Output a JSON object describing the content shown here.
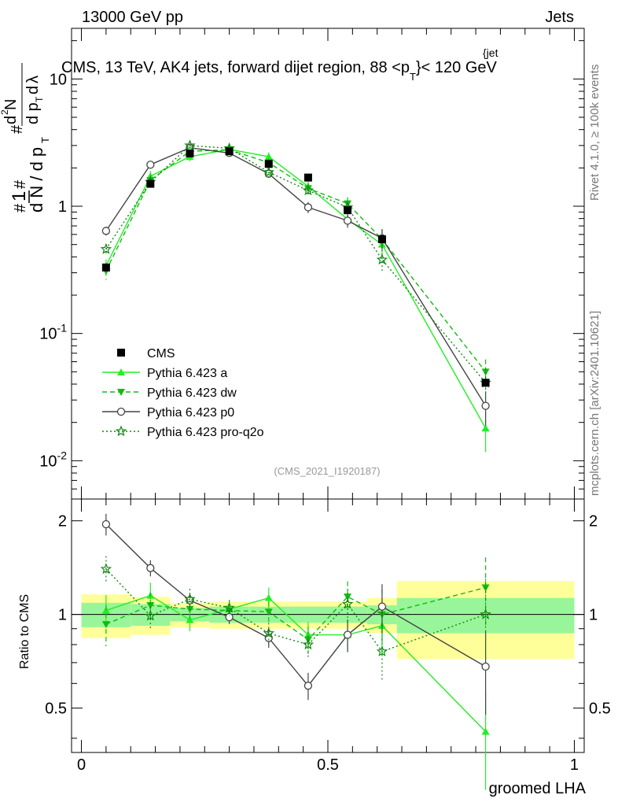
{
  "header": {
    "left": "13000 GeV pp",
    "right": "Jets"
  },
  "side_labels": {
    "rivet": "Rivet 4.1.0, ≥ 100k events",
    "mcplots": "mcplots.cern.ch [arXiv:2401.10621]"
  },
  "chart_data": {
    "type": "line",
    "title": "CMS, 13 TeV, AK4 jets, forward dijet region, 88 <p_T^{jet}< 120 GeV",
    "title_main": "CMS, 13 TeV, AK4 jets, forward dijet region, 88 <p",
    "title_sup": "{jet",
    "title_sub": "T",
    "title_tail": "}< 120 GeV",
    "analysis_id": "(CMS_2021_I1920187)",
    "xlabel": "groomed LHA",
    "ylabel": "1/dN/dp_T · d²N/(dp_T dλ)",
    "ratio_ylabel": "Ratio to CMS",
    "xlim": [
      -0.02,
      1.02
    ],
    "ylim": [
      0.005,
      25
    ],
    "yscale": "log",
    "ratio_ylim": [
      0.36,
      2.35
    ],
    "ratio_yscale": "log",
    "x_ticks": [
      "0",
      "0.5",
      "1"
    ],
    "y_ticks": [
      "10^{-2}",
      "10^{-1}",
      "1",
      "10"
    ],
    "ratio_ticks": [
      "0.5",
      "1",
      "2"
    ],
    "bins": [
      {
        "lo": 0.0,
        "hi": 0.1
      },
      {
        "lo": 0.1,
        "hi": 0.18
      },
      {
        "lo": 0.18,
        "hi": 0.26
      },
      {
        "lo": 0.26,
        "hi": 0.34
      },
      {
        "lo": 0.34,
        "hi": 0.42
      },
      {
        "lo": 0.42,
        "hi": 0.5
      },
      {
        "lo": 0.5,
        "hi": 0.58
      },
      {
        "lo": 0.58,
        "hi": 0.64
      },
      {
        "lo": 0.64,
        "hi": 1.0
      }
    ],
    "x": [
      0.05,
      0.14,
      0.22,
      0.3,
      0.38,
      0.46,
      0.54,
      0.61,
      0.82
    ],
    "data": {
      "name": "CMS",
      "values": [
        0.33,
        1.5,
        2.6,
        2.7,
        2.15,
        1.68,
        0.93,
        0.55,
        0.041
      ],
      "band_outer": [
        0.16,
        0.14,
        0.09,
        0.1,
        0.1,
        0.1,
        0.1,
        0.13,
        0.28
      ],
      "band_inner": [
        0.09,
        0.08,
        0.05,
        0.06,
        0.06,
        0.06,
        0.06,
        0.07,
        0.13
      ]
    },
    "series": [
      {
        "name": "Pythia 6.423 a",
        "color": "#22ee22",
        "dash": "",
        "marker": "triangle-up",
        "values": [
          0.34,
          1.72,
          2.45,
          2.8,
          2.45,
          1.43,
          0.79,
          0.5,
          0.018
        ],
        "ratio": [
          1.03,
          1.15,
          0.96,
          1.04,
          1.13,
          0.86,
          0.86,
          0.92,
          0.42
        ],
        "err": [
          0.12,
          0.1,
          0.08,
          0.06,
          0.08,
          0.1,
          0.12,
          0.2,
          0.35
        ]
      },
      {
        "name": "Pythia 6.423 dw",
        "color": "#11bb11",
        "dash": "6,4",
        "marker": "triangle-down",
        "values": [
          0.31,
          1.6,
          2.7,
          2.78,
          2.2,
          1.38,
          1.05,
          0.55,
          0.05
        ],
        "ratio": [
          0.93,
          1.07,
          1.04,
          1.03,
          1.02,
          0.83,
          1.14,
          1.0,
          1.22
        ],
        "err": [
          0.15,
          0.1,
          0.08,
          0.06,
          0.08,
          0.1,
          0.12,
          0.2,
          0.25
        ]
      },
      {
        "name": "Pythia 6.423 p0",
        "color": "#444444",
        "dash": "",
        "marker": "circle-open",
        "values": [
          0.64,
          2.12,
          2.88,
          2.62,
          1.8,
          0.98,
          0.77,
          0.56,
          0.027
        ],
        "ratio": [
          1.95,
          1.41,
          1.11,
          0.98,
          0.84,
          0.59,
          0.86,
          1.06,
          0.68
        ],
        "err": [
          0.08,
          0.06,
          0.05,
          0.05,
          0.07,
          0.1,
          0.12,
          0.18,
          0.3
        ]
      },
      {
        "name": "Pythia 6.423 pro-q2o",
        "color": "#118811",
        "dash": "2,3",
        "marker": "star",
        "values": [
          0.46,
          1.55,
          3.0,
          2.85,
          1.85,
          1.33,
          0.98,
          0.38,
          0.041
        ],
        "ratio": [
          1.4,
          0.99,
          1.12,
          1.05,
          0.87,
          0.8,
          1.08,
          0.76,
          1.0
        ],
        "err": [
          0.1,
          0.1,
          0.08,
          0.06,
          0.08,
          0.1,
          0.12,
          0.2,
          0.3
        ]
      }
    ],
    "legend_position": "lower-left",
    "legend_cms": "CMS"
  }
}
